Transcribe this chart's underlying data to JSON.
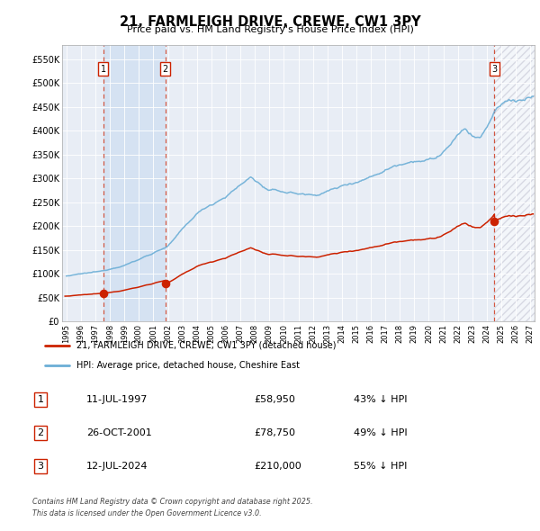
{
  "title": "21, FARMLEIGH DRIVE, CREWE, CW1 3PY",
  "subtitle": "Price paid vs. HM Land Registry's House Price Index (HPI)",
  "plot_bg_color": "#e8edf5",
  "ylim": [
    0,
    580000
  ],
  "yticks": [
    0,
    50000,
    100000,
    150000,
    200000,
    250000,
    300000,
    350000,
    400000,
    450000,
    500000,
    550000
  ],
  "ytick_labels": [
    "£0",
    "£50K",
    "£100K",
    "£150K",
    "£200K",
    "£250K",
    "£300K",
    "£350K",
    "£400K",
    "£450K",
    "£500K",
    "£550K"
  ],
  "xlim_start": 1994.7,
  "xlim_end": 2027.3,
  "sales": [
    {
      "date_year": 1997.53,
      "price": 58950,
      "label": "1"
    },
    {
      "date_year": 2001.82,
      "price": 78750,
      "label": "2"
    },
    {
      "date_year": 2024.53,
      "price": 210000,
      "label": "3"
    }
  ],
  "hpi_color": "#6baed6",
  "price_color": "#cc2200",
  "legend_label_price": "21, FARMLEIGH DRIVE, CREWE, CW1 3PY (detached house)",
  "legend_label_hpi": "HPI: Average price, detached house, Cheshire East",
  "table_entries": [
    {
      "num": "1",
      "date": "11-JUL-1997",
      "price": "£58,950",
      "pct": "43% ↓ HPI"
    },
    {
      "num": "2",
      "date": "26-OCT-2001",
      "price": "£78,750",
      "pct": "49% ↓ HPI"
    },
    {
      "num": "3",
      "date": "12-JUL-2024",
      "price": "£210,000",
      "pct": "55% ↓ HPI"
    }
  ],
  "footer": "Contains HM Land Registry data © Crown copyright and database right 2025.\nThis data is licensed under the Open Government Licence v3.0."
}
